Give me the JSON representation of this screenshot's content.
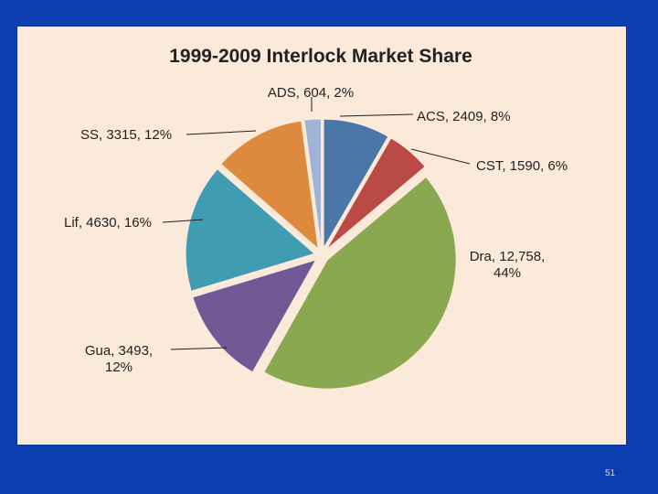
{
  "slide": {
    "page_number": "51",
    "background_color": "#0b3fb0",
    "panel_color": "#fbe9da"
  },
  "chart_data": {
    "type": "pie",
    "title": "1999-2009 Interlock Market Share",
    "slices": [
      {
        "name": "ACS",
        "value": 2409,
        "percent": 8,
        "color": "#4a76a8",
        "label_lines": [
          "ACS, 2409, 8%"
        ]
      },
      {
        "name": "CST",
        "value": 1590,
        "percent": 6,
        "color": "#b94a45",
        "label_lines": [
          "CST, 1590, 6%"
        ]
      },
      {
        "name": "Dra",
        "value": 12758,
        "percent": 44,
        "color": "#8aa84f",
        "label_lines": [
          "Dra, 12,758,",
          "44%"
        ]
      },
      {
        "name": "Gua",
        "value": 3493,
        "percent": 12,
        "color": "#715996",
        "label_lines": [
          "Gua, 3493,",
          "12%"
        ]
      },
      {
        "name": "Lif",
        "value": 4630,
        "percent": 16,
        "color": "#3f9cb3",
        "label_lines": [
          "Lif, 4630, 16%"
        ]
      },
      {
        "name": "SS",
        "value": 3315,
        "percent": 12,
        "color": "#de8a3e",
        "label_lines": [
          "SS, 3315, 12%"
        ]
      },
      {
        "name": "ADS",
        "value": 604,
        "percent": 2,
        "color": "#9fb3d6",
        "label_lines": [
          "ADS, 604, 2%"
        ]
      }
    ]
  }
}
